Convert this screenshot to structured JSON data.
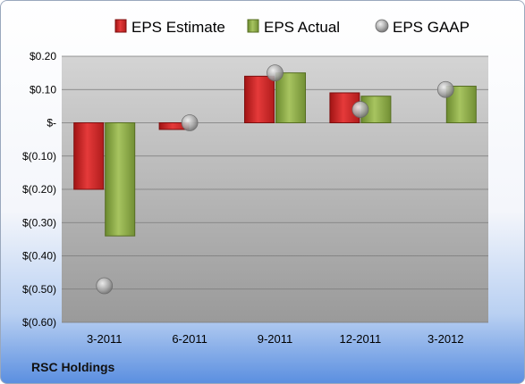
{
  "chart_data": {
    "type": "bar",
    "categories": [
      "3-2011",
      "6-2011",
      "9-2011",
      "12-2011",
      "3-2012"
    ],
    "series": [
      {
        "name": "EPS Estimate",
        "kind": "bar",
        "color": "#d42a2a",
        "values": [
          -0.2,
          -0.02,
          0.14,
          0.09,
          null
        ]
      },
      {
        "name": "EPS Actual",
        "kind": "bar",
        "color": "#8fad4a",
        "values": [
          -0.34,
          null,
          0.15,
          0.08,
          0.11
        ]
      },
      {
        "name": "EPS GAAP",
        "kind": "marker",
        "color": "#b0b0b0",
        "values": [
          -0.49,
          0.0,
          0.15,
          0.04,
          0.1
        ]
      }
    ],
    "y_ticks": [
      "$(0.60)",
      "$(0.50)",
      "$(0.40)",
      "$(0.30)",
      "$(0.20)",
      "$(0.10)",
      "$-",
      "$0.10",
      "$0.20"
    ],
    "ylim": [
      -0.6,
      0.2
    ],
    "grid": true,
    "legend_position": "top"
  },
  "footer": {
    "company": "RSC Holdings"
  }
}
